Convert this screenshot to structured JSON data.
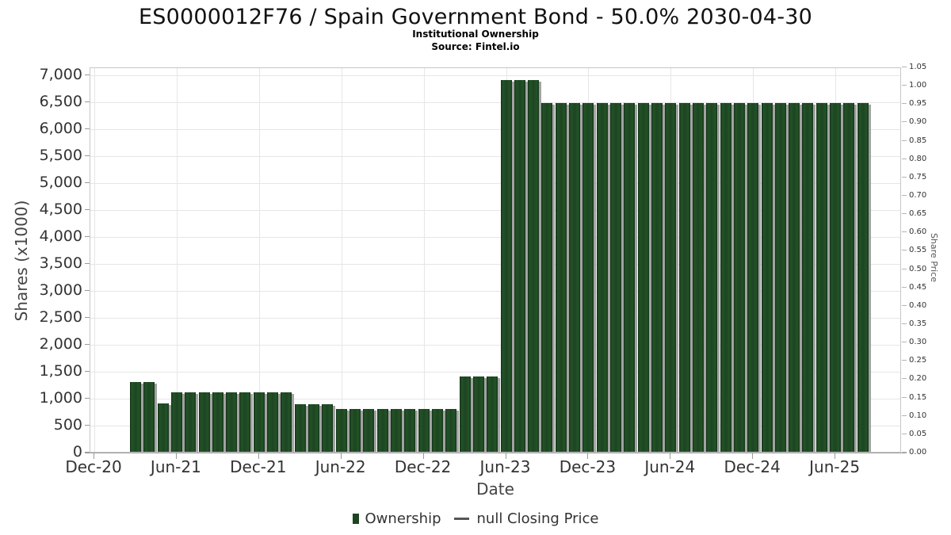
{
  "header": {
    "title": "ES0000012F76 / Spain Government Bond - 50.0% 2030-04-30",
    "subtitle": "Institutional Ownership",
    "source": "Source: Fintel.io"
  },
  "legend": {
    "ownership_label": "Ownership",
    "price_label": "null Closing Price"
  },
  "colors": {
    "bar": "#1d4522",
    "bar_shadow": "#a2a2a2",
    "grid": "#e6e6e6",
    "axis": "#9a9a9a",
    "text": "#333333"
  },
  "chart_data": {
    "type": "bar",
    "title": "ES0000012F76 / Spain Government Bond - 50.0% 2030-04-30",
    "subtitle": "Institutional Ownership",
    "source": "Source: Fintel.io",
    "xlabel": "Date",
    "ylabel_left": "Shares (x1000)",
    "ylabel_right": "Share Price",
    "series_name": "Ownership",
    "price_series_name": "null Closing Price",
    "grid": true,
    "legend_position": "bottom",
    "ylim_left": [
      0,
      7150
    ],
    "ylim_right": [
      0,
      1.05
    ],
    "x_axis_ticks": [
      "Dec-20",
      "Jun-21",
      "Dec-21",
      "Jun-22",
      "Dec-22",
      "Jun-23",
      "Dec-23",
      "Jun-24",
      "Dec-24",
      "Jun-25"
    ],
    "y_left_tick_labels": [
      "0",
      "500",
      "1,000",
      "1,500",
      "2,000",
      "2,500",
      "3,000",
      "3,500",
      "4,000",
      "4,500",
      "5,000",
      "5,500",
      "6,000",
      "6,500",
      "7,000"
    ],
    "y_left_tick_step": 500,
    "y_right_tick_labels": [
      "0.00",
      "0.05",
      "0.10",
      "0.15",
      "0.20",
      "0.25",
      "0.30",
      "0.35",
      "0.40",
      "0.45",
      "0.50",
      "0.55",
      "0.60",
      "0.65",
      "0.70",
      "0.75",
      "0.80",
      "0.85",
      "0.90",
      "0.95",
      "1.00",
      "1.05"
    ],
    "x": [
      "Mar-21",
      "Apr-21",
      "May-21",
      "Jun-21",
      "Jul-21",
      "Aug-21",
      "Sep-21",
      "Oct-21",
      "Nov-21",
      "Dec-21",
      "Jan-22",
      "Feb-22",
      "Mar-22",
      "Apr-22",
      "May-22",
      "Jun-22",
      "Jul-22",
      "Aug-22",
      "Sep-22",
      "Oct-22",
      "Nov-22",
      "Dec-22",
      "Jan-23",
      "Feb-23",
      "Mar-23",
      "Apr-23",
      "May-23",
      "Jun-23",
      "Jul-23",
      "Aug-23",
      "Sep-23",
      "Oct-23",
      "Nov-23",
      "Dec-23",
      "Jan-24",
      "Feb-24",
      "Mar-24",
      "Apr-24",
      "May-24",
      "Jun-24",
      "Jul-24",
      "Aug-24",
      "Sep-24",
      "Oct-24",
      "Nov-24",
      "Dec-24",
      "Jan-25",
      "Feb-25",
      "Mar-25",
      "Apr-25",
      "May-25",
      "Jun-25",
      "Jul-25",
      "Aug-25"
    ],
    "values": [
      1300,
      1300,
      900,
      1100,
      1100,
      1100,
      1100,
      1100,
      1100,
      1100,
      1100,
      1100,
      880,
      880,
      880,
      800,
      800,
      800,
      800,
      800,
      800,
      800,
      800,
      800,
      1400,
      1400,
      1400,
      6900,
      6900,
      6900,
      6470,
      6470,
      6470,
      6470,
      6470,
      6470,
      6470,
      6470,
      6470,
      6470,
      6470,
      6470,
      6470,
      6470,
      6470,
      6470,
      6470,
      6470,
      6470,
      6470,
      6470,
      6470,
      6470,
      6470
    ]
  }
}
